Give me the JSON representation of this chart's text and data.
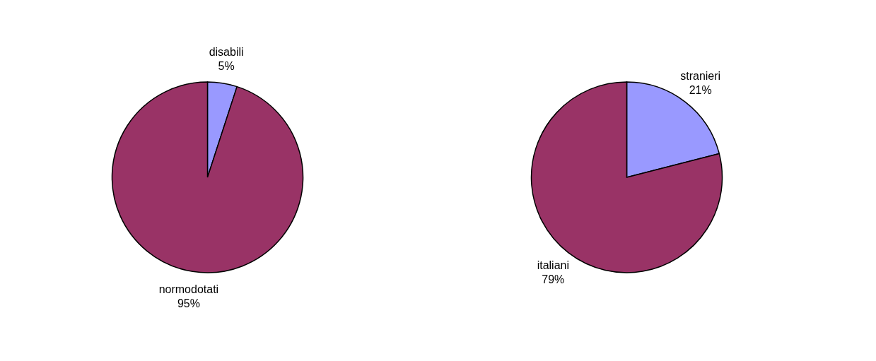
{
  "chart_data": [
    {
      "type": "pie",
      "categories": [
        "disabili",
        "normodotati"
      ],
      "values": [
        5,
        95
      ],
      "colors": [
        "#9999ff",
        "#993366"
      ],
      "value_labels": [
        "5%",
        "95%"
      ]
    },
    {
      "type": "pie",
      "categories": [
        "stranieri",
        "italiani"
      ],
      "values": [
        21,
        79
      ],
      "colors": [
        "#9999ff",
        "#993366"
      ],
      "value_labels": [
        "21%",
        "79%"
      ]
    }
  ]
}
